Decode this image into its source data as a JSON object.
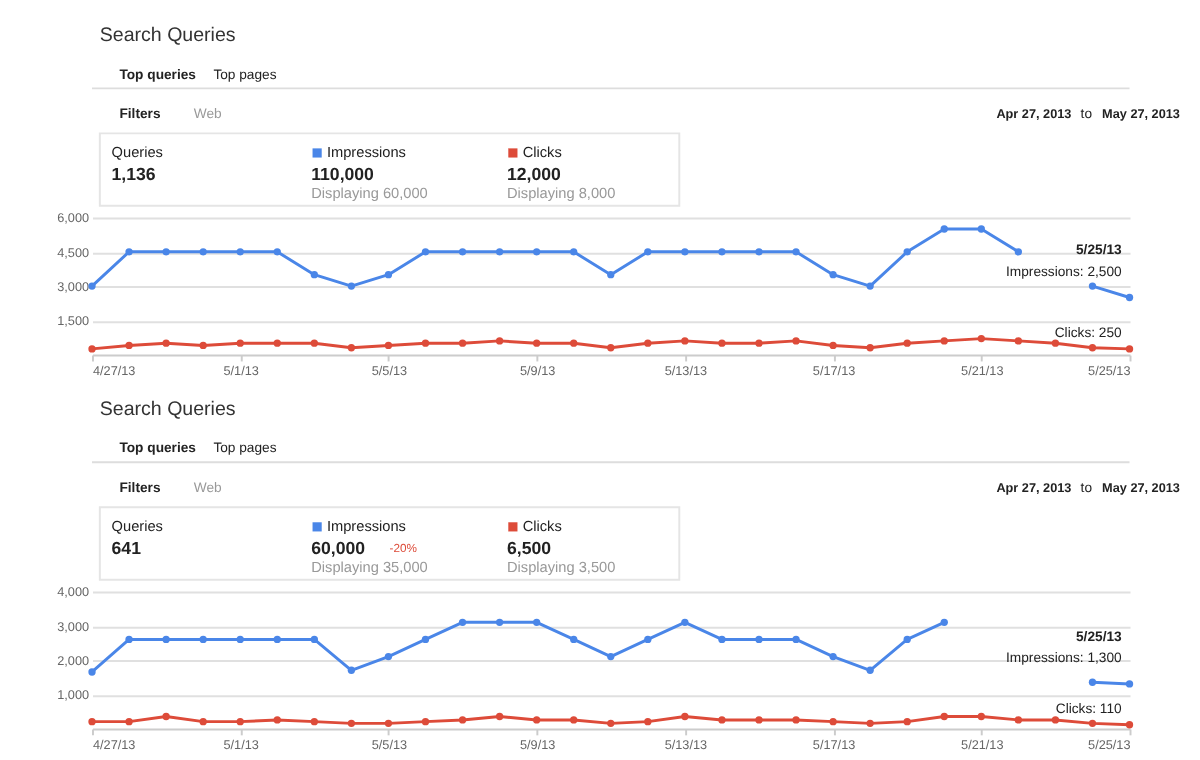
{
  "chart_data": [
    {
      "type": "line",
      "title": "Search Queries",
      "x": [
        "2013-04-27",
        "2013-04-28",
        "2013-04-29",
        "2013-04-30",
        "2013-05-01",
        "2013-05-02",
        "2013-05-03",
        "2013-05-04",
        "2013-05-05",
        "2013-05-06",
        "2013-05-07",
        "2013-05-08",
        "2013-05-09",
        "2013-05-10",
        "2013-05-11",
        "2013-05-12",
        "2013-05-13",
        "2013-05-14",
        "2013-05-15",
        "2013-05-16",
        "2013-05-17",
        "2013-05-18",
        "2013-05-19",
        "2013-05-20",
        "2013-05-21",
        "2013-05-22",
        "2013-05-23",
        "2013-05-24",
        "2013-05-25"
      ],
      "series": [
        {
          "name": "Impressions",
          "color": "#4a86e8",
          "values": [
            3000,
            4500,
            4500,
            4500,
            4500,
            4500,
            3500,
            3000,
            3500,
            4500,
            4500,
            4500,
            4500,
            4500,
            3500,
            4500,
            4500,
            4500,
            4500,
            4500,
            3500,
            3000,
            4500,
            5500,
            5500,
            4500,
            null,
            3000,
            2500
          ]
        },
        {
          "name": "Clicks",
          "color": "#dd4b39",
          "values": [
            250,
            400,
            500,
            400,
            500,
            500,
            500,
            300,
            400,
            500,
            500,
            600,
            500,
            500,
            300,
            500,
            600,
            500,
            500,
            600,
            400,
            300,
            500,
            600,
            700,
            600,
            500,
            300,
            250
          ]
        }
      ],
      "xlim": [
        "2013-04-27",
        "2013-05-25"
      ],
      "xticks": [
        {
          "value": "2013-04-27",
          "label": "4/27/13"
        },
        {
          "value": "2013-05-01",
          "label": "5/1/13"
        },
        {
          "value": "2013-05-05",
          "label": "5/5/13"
        },
        {
          "value": "2013-05-09",
          "label": "5/9/13"
        },
        {
          "value": "2013-05-13",
          "label": "5/13/13"
        },
        {
          "value": "2013-05-17",
          "label": "5/17/13"
        },
        {
          "value": "2013-05-21",
          "label": "5/21/13"
        },
        {
          "value": "2013-05-25",
          "label": "5/25/13"
        }
      ],
      "ylim": [
        0,
        6000
      ],
      "yticks": [
        {
          "value": 1500,
          "label": "1,500"
        },
        {
          "value": 3000,
          "label": "3,000"
        },
        {
          "value": 4500,
          "label": "4,500"
        },
        {
          "value": 6000,
          "label": "6,000"
        }
      ],
      "grid": "y",
      "legend": "top left",
      "marker": "circle",
      "line_style": "solid",
      "annotations": [
        "Top queries",
        "Top pages",
        "Filters",
        "Web",
        "Apr 27, 2013",
        "to",
        "May 27, 2013",
        "Queries",
        "1,136",
        "110,000",
        "Displaying 60,000",
        "12,000",
        "Displaying 8,000",
        {
          "text": "5/25/13",
          "x": "2013-05-25",
          "y": 2500
        },
        {
          "text": "Impressions: 2,500",
          "x": "2013-05-25",
          "y": 2500
        },
        {
          "text": "Clicks: 250",
          "x": "2013-05-25",
          "y": 250
        }
      ]
    },
    {
      "type": "line",
      "title": "Search Queries",
      "x": [
        "2013-04-27",
        "2013-04-28",
        "2013-04-29",
        "2013-04-30",
        "2013-05-01",
        "2013-05-02",
        "2013-05-03",
        "2013-05-04",
        "2013-05-05",
        "2013-05-06",
        "2013-05-07",
        "2013-05-08",
        "2013-05-09",
        "2013-05-10",
        "2013-05-11",
        "2013-05-12",
        "2013-05-13",
        "2013-05-14",
        "2013-05-15",
        "2013-05-16",
        "2013-05-17",
        "2013-05-18",
        "2013-05-19",
        "2013-05-20",
        "2013-05-21",
        "2013-05-22",
        "2013-05-23",
        "2013-05-24",
        "2013-05-25"
      ],
      "series": [
        {
          "name": "Impressions",
          "color": "#4a86e8",
          "values": [
            1650,
            2600,
            2600,
            2600,
            2600,
            2600,
            2600,
            1700,
            2100,
            2600,
            3100,
            3100,
            3100,
            2600,
            2100,
            2600,
            3100,
            2600,
            2600,
            2600,
            2100,
            1700,
            2600,
            3100,
            null,
            null,
            null,
            1350,
            1300
          ]
        },
        {
          "name": "Clicks",
          "color": "#dd4b39",
          "values": [
            200,
            200,
            350,
            200,
            200,
            250,
            200,
            150,
            150,
            200,
            250,
            350,
            250,
            250,
            150,
            200,
            350,
            250,
            250,
            250,
            200,
            150,
            200,
            350,
            350,
            250,
            250,
            150,
            110
          ]
        }
      ],
      "xlim": [
        "2013-04-27",
        "2013-05-25"
      ],
      "xticks": [
        {
          "value": "2013-04-27",
          "label": "4/27/13"
        },
        {
          "value": "2013-05-01",
          "label": "5/1/13"
        },
        {
          "value": "2013-05-05",
          "label": "5/5/13"
        },
        {
          "value": "2013-05-09",
          "label": "5/9/13"
        },
        {
          "value": "2013-05-13",
          "label": "5/13/13"
        },
        {
          "value": "2013-05-17",
          "label": "5/17/13"
        },
        {
          "value": "2013-05-21",
          "label": "5/21/13"
        },
        {
          "value": "2013-05-25",
          "label": "5/25/13"
        }
      ],
      "ylim": [
        0,
        4000
      ],
      "yticks": [
        {
          "value": 1000,
          "label": "1,000"
        },
        {
          "value": 2000,
          "label": "2,000"
        },
        {
          "value": 3000,
          "label": "3,000"
        },
        {
          "value": 4000,
          "label": "4,000"
        }
      ],
      "grid": "y",
      "legend": "top left",
      "marker": "circle",
      "line_style": "solid",
      "annotations": [
        "Top queries",
        "Top pages",
        "Filters",
        "Web",
        "Apr 27, 2013",
        "to",
        "May 27, 2013",
        "Queries",
        "641",
        "60,000",
        "Displaying 35,000",
        "6,500",
        "Displaying 3,500",
        "-20%",
        {
          "text": "5/25/13",
          "x": "2013-05-25",
          "y": 1300
        },
        {
          "text": "Impressions: 1,300",
          "x": "2013-05-25",
          "y": 1300
        },
        {
          "text": "Clicks: 110",
          "x": "2013-05-25",
          "y": 110
        }
      ]
    }
  ]
}
